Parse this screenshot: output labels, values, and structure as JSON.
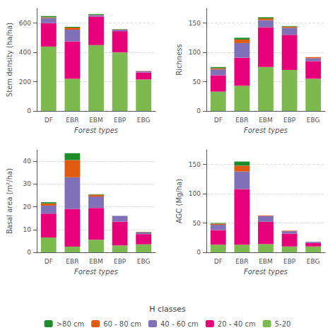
{
  "chart_data": [
    {
      "type": "bar",
      "stacked": true,
      "grid": true,
      "categories": [
        "DF",
        "EBR",
        "EBM",
        "EBP",
        "EBG"
      ],
      "xlabel": "Forest types",
      "ylabel": "Stem density (ha/ha)",
      "ylim": [
        0,
        700
      ],
      "yticks": [
        0,
        200,
        400,
        600
      ],
      "series": [
        {
          "name": "5-20",
          "color": "#7cba50",
          "values": [
            440,
            220,
            450,
            400,
            215
          ]
        },
        {
          "name": "20 - 40 cm",
          "color": "#e8007a",
          "values": [
            160,
            255,
            195,
            145,
            48
          ]
        },
        {
          "name": "40 - 60 cm",
          "color": "#8070b8",
          "values": [
            35,
            80,
            10,
            10,
            8
          ]
        },
        {
          "name": "60 - 80 cm",
          "color": "#e05a10",
          "values": [
            5,
            15,
            2,
            2,
            2
          ]
        },
        {
          "name": ">80 cm",
          "color": "#1e8c28",
          "values": [
            8,
            5,
            5,
            2,
            0
          ]
        }
      ]
    },
    {
      "type": "bar",
      "stacked": true,
      "grid": true,
      "categories": [
        "DF",
        "EBR",
        "EBM",
        "EBP",
        "EBG"
      ],
      "xlabel": "Forest types",
      "ylabel": "Richness",
      "ylim": [
        0,
        175
      ],
      "yticks": [
        0,
        50,
        100,
        150
      ],
      "series": [
        {
          "name": "5-20",
          "color": "#7cba50",
          "values": [
            33,
            43,
            75,
            70,
            55
          ]
        },
        {
          "name": "20 - 40 cm",
          "color": "#e8007a",
          "values": [
            28,
            48,
            68,
            60,
            30
          ]
        },
        {
          "name": "40 - 60 cm",
          "color": "#8070b8",
          "values": [
            10,
            25,
            12,
            12,
            5
          ]
        },
        {
          "name": "60 - 80 cm",
          "color": "#e05a10",
          "values": [
            2,
            6,
            3,
            2,
            2
          ]
        },
        {
          "name": ">80 cm",
          "color": "#1e8c28",
          "values": [
            2,
            3,
            2,
            1,
            0
          ]
        }
      ]
    },
    {
      "type": "bar",
      "stacked": true,
      "grid": true,
      "categories": [
        "DF",
        "EBR",
        "EBM",
        "EBP",
        "EBG"
      ],
      "xlabel": "Forest types",
      "ylabel": "Basal area (m²/ha)",
      "ylim": [
        0,
        45
      ],
      "yticks": [
        0,
        10,
        20,
        30,
        40
      ],
      "series": [
        {
          "name": "5-20",
          "color": "#7cba50",
          "values": [
            6.5,
            2.5,
            5.5,
            3.0,
            3.5
          ]
        },
        {
          "name": "20 - 40 cm",
          "color": "#e8007a",
          "values": [
            10.5,
            16.5,
            14.0,
            10.5,
            4.5
          ]
        },
        {
          "name": "40 - 60 cm",
          "color": "#8070b8",
          "values": [
            3.5,
            14.0,
            5.0,
            2.5,
            0.7
          ]
        },
        {
          "name": "60 - 80 cm",
          "color": "#e05a10",
          "values": [
            1.0,
            7.5,
            0.8,
            0.0,
            0.2
          ]
        },
        {
          "name": ">80 cm",
          "color": "#1e8c28",
          "values": [
            0.5,
            3.0,
            0.2,
            0.0,
            0.1
          ]
        }
      ]
    },
    {
      "type": "bar",
      "stacked": true,
      "grid": true,
      "categories": [
        "DF",
        "EBR",
        "EBM",
        "EBP",
        "EBG"
      ],
      "xlabel": "Forest types",
      "ylabel": "AGC (Mg/ha)",
      "ylim": [
        0,
        175
      ],
      "yticks": [
        0,
        50,
        100,
        150
      ],
      "series": [
        {
          "name": "5-20",
          "color": "#7cba50",
          "values": [
            13,
            13,
            14,
            10,
            10
          ]
        },
        {
          "name": "20 - 40 cm",
          "color": "#e8007a",
          "values": [
            25,
            95,
            38,
            22,
            6
          ]
        },
        {
          "name": "40 - 60 cm",
          "color": "#8070b8",
          "values": [
            9,
            30,
            10,
            4,
            2
          ]
        },
        {
          "name": "60 - 80 cm",
          "color": "#e05a10",
          "values": [
            2,
            10,
            1,
            1,
            0
          ]
        },
        {
          "name": ">80 cm",
          "color": "#1e8c28",
          "values": [
            1,
            7,
            0,
            0,
            0
          ]
        }
      ]
    }
  ],
  "legend": "bottom",
  "legend_title": "H classes"
}
